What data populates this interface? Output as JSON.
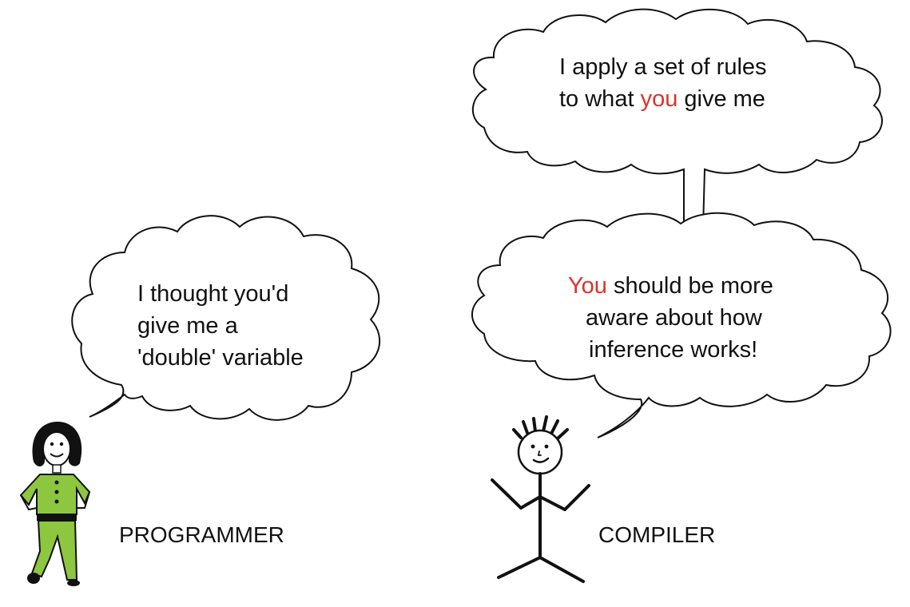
{
  "colors": {
    "highlight": "#d9342b",
    "outline": "#111111",
    "programmer_outfit": "#8dc63f"
  },
  "programmer": {
    "label": "PROGRAMMER",
    "bubble_lines": [
      "I thought you'd",
      "give me a",
      "'double' variable"
    ]
  },
  "compiler": {
    "label": "COMPILER",
    "thought": {
      "line1": "I apply a set of rules",
      "line2_before": "to what ",
      "line2_highlight": "you",
      "line2_after": " give me"
    },
    "speech": {
      "line1_highlight": "You",
      "line1_after": " should be more",
      "line2": "aware about how",
      "line3": "inference works!"
    }
  }
}
